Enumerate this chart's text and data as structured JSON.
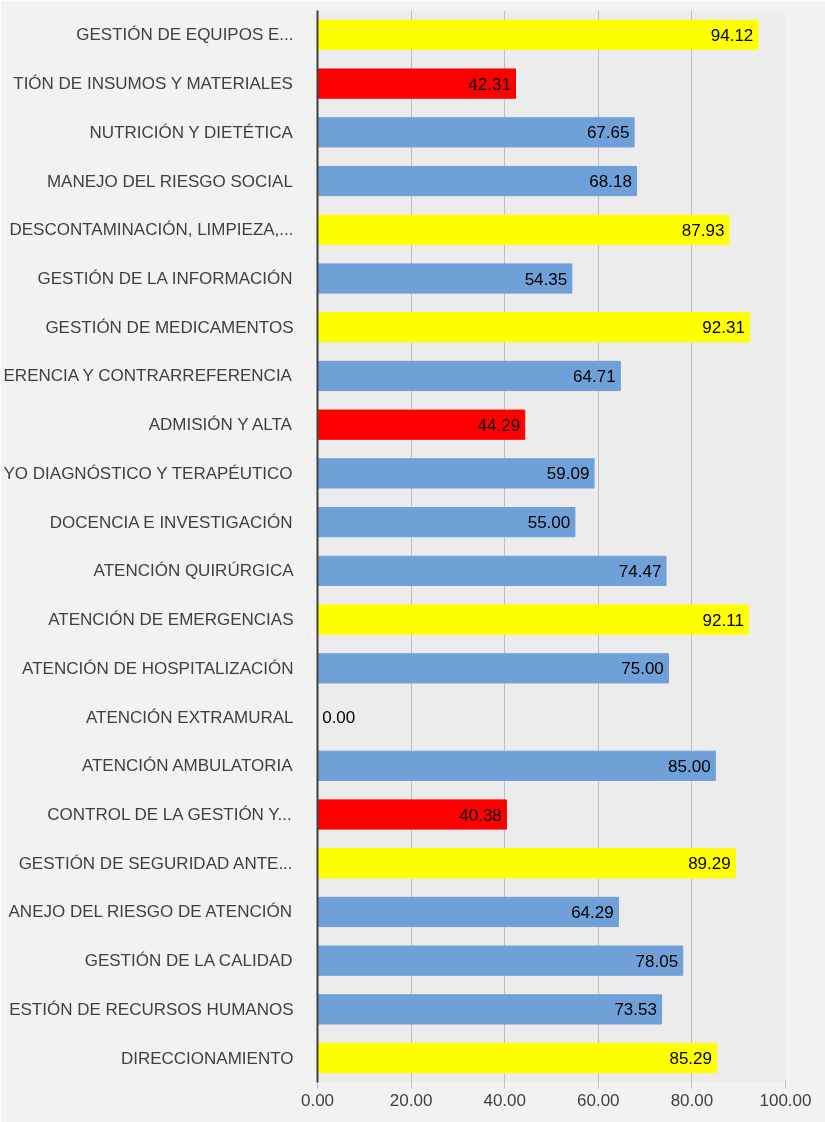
{
  "chart_data": {
    "type": "bar",
    "orientation": "horizontal",
    "categories": [
      "GESTIÓN DE EQUIPOS E...",
      "TIÓN DE INSUMOS Y MATERIALES",
      "NUTRICIÓN Y DIETÉTICA",
      "MANEJO DEL RIESGO SOCIAL",
      "DESCONTAMINACIÓN, LIMPIEZA,...",
      "GESTIÓN DE LA INFORMACIÓN",
      "GESTIÓN DE MEDICAMENTOS",
      "ERENCIA Y CONTRARREFERENCIA",
      "ADMISIÓN Y ALTA",
      "YO DIAGNÓSTICO Y TERAPÉUTICO",
      "DOCENCIA E INVESTIGACIÓN",
      "ATENCIÓN QUIRÚRGICA",
      "ATENCIÓN DE EMERGENCIAS",
      "ATENCIÓN DE HOSPITALIZACIÓN",
      "ATENCIÓN EXTRAMURAL",
      "ATENCIÓN AMBULATORIA",
      "CONTROL DE LA GESTIÓN Y...",
      "GESTIÓN DE SEGURIDAD ANTE...",
      "ANEJO DEL RIESGO DE ATENCIÓN",
      "GESTIÓN DE LA CALIDAD",
      "ESTIÓN DE RECURSOS HUMANOS",
      "DIRECCIONAMIENTO"
    ],
    "values": [
      94.12,
      42.31,
      67.65,
      68.18,
      87.93,
      54.35,
      92.31,
      64.71,
      44.29,
      59.09,
      55.0,
      74.47,
      92.11,
      75.0,
      0.0,
      85.0,
      40.38,
      89.29,
      64.29,
      78.05,
      73.53,
      85.29
    ],
    "value_labels": [
      "94.12",
      "42.31",
      "67.65",
      "68.18",
      "87.93",
      "54.35",
      "92.31",
      "64.71",
      "44.29",
      "59.09",
      "55.00",
      "74.47",
      "92.11",
      "75.00",
      "0.00",
      "85.00",
      "40.38",
      "89.29",
      "64.29",
      "78.05",
      "73.53",
      "85.29"
    ],
    "colors": [
      "#ffff00",
      "#ff0000",
      "#6fa0d8",
      "#6fa0d8",
      "#ffff00",
      "#6fa0d8",
      "#ffff00",
      "#6fa0d8",
      "#ff0000",
      "#6fa0d8",
      "#6fa0d8",
      "#6fa0d8",
      "#ffff00",
      "#6fa0d8",
      "#6fa0d8",
      "#6fa0d8",
      "#ff0000",
      "#ffff00",
      "#6fa0d8",
      "#6fa0d8",
      "#6fa0d8",
      "#ffff00"
    ],
    "xlim": [
      0,
      100
    ],
    "xticks": [
      {
        "value": 0,
        "label": "0.00"
      },
      {
        "value": 20,
        "label": "20.00"
      },
      {
        "value": 40,
        "label": "40.00"
      },
      {
        "value": 60,
        "label": "60.00"
      },
      {
        "value": 80,
        "label": "80.00"
      },
      {
        "value": 100,
        "label": "100.00"
      }
    ],
    "grid": "x"
  }
}
